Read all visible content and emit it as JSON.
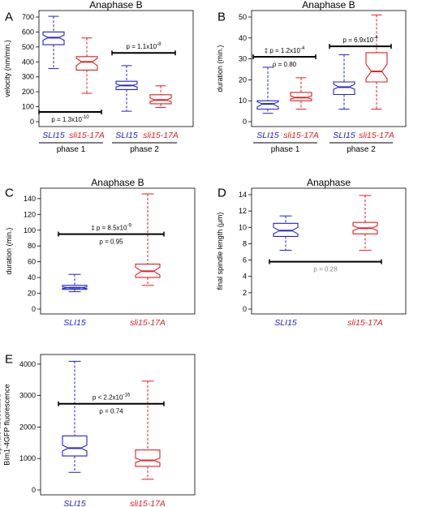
{
  "colors": {
    "blue": "#2222cc",
    "red": "#e02020",
    "black": "#000000",
    "gray": "#888888"
  },
  "chart_data": [
    {
      "panel": "A",
      "type": "box",
      "title": "Anaphase B",
      "ylabel": "velocity (nm/min.)",
      "ylim": [
        0,
        700
      ],
      "yticks": [
        0,
        100,
        200,
        300,
        400,
        500,
        600,
        700
      ],
      "groups": [
        {
          "label": "SLI15",
          "color": "blue",
          "whislo": 355,
          "q1": 515,
          "med": 562,
          "q3": 600,
          "whishi": 705,
          "notch_lo": 545,
          "notch_hi": 580
        },
        {
          "label": "sli15-17A",
          "color": "red",
          "whislo": 190,
          "q1": 345,
          "med": 400,
          "q3": 435,
          "whishi": 560,
          "notch_lo": 375,
          "notch_hi": 425
        },
        {
          "label": "SLI15",
          "color": "blue",
          "whislo": 70,
          "q1": 215,
          "med": 242,
          "q3": 270,
          "whishi": 375,
          "notch_lo": 232,
          "notch_hi": 252
        },
        {
          "label": "sli15-17A",
          "color": "red",
          "whislo": 95,
          "q1": 120,
          "med": 145,
          "q3": 180,
          "whishi": 240,
          "notch_lo": 135,
          "notch_hi": 158
        }
      ],
      "phases": [
        {
          "label": "phase 1",
          "groups": [
            0,
            1
          ]
        },
        {
          "label": "phase 2",
          "groups": [
            2,
            3
          ]
        }
      ],
      "annotations": [
        {
          "from": 0,
          "to": 1,
          "y": 65,
          "lines": [
            {
              "text": "p = 1.3x10",
              "sup": "-10"
            }
          ],
          "text_pos": "below"
        },
        {
          "from": 2,
          "to": 3,
          "y": 460,
          "lines": [
            {
              "text": "p = 1.1x10",
              "sup": "-8"
            }
          ],
          "text_pos": "above"
        }
      ]
    },
    {
      "panel": "B",
      "type": "box",
      "title": "Anaphase B",
      "ylabel": "duration (min.)",
      "ylim": [
        0,
        50
      ],
      "yticks": [
        0,
        10,
        20,
        30,
        40,
        50
      ],
      "groups": [
        {
          "label": "SLI15",
          "color": "blue",
          "whislo": 4,
          "q1": 6,
          "med": 8.5,
          "q3": 10,
          "whishi": 26,
          "notch_lo": 7,
          "notch_hi": 9.5
        },
        {
          "label": "sli15-17A",
          "color": "red",
          "whislo": 6,
          "q1": 10,
          "med": 11.5,
          "q3": 14,
          "whishi": 21,
          "notch_lo": 10.8,
          "notch_hi": 12.3
        },
        {
          "label": "SLI15",
          "color": "blue",
          "whislo": 6,
          "q1": 13,
          "med": 16.5,
          "q3": 19,
          "whishi": 32,
          "notch_lo": 15.5,
          "notch_hi": 18
        },
        {
          "label": "sli15-17A",
          "color": "red",
          "whislo": 6,
          "q1": 19,
          "med": 24,
          "q3": 33,
          "whishi": 51,
          "notch_lo": 20.5,
          "notch_hi": 27.5
        }
      ],
      "phases": [
        {
          "label": "phase 1",
          "groups": [
            0,
            1
          ]
        },
        {
          "label": "phase 2",
          "groups": [
            2,
            3
          ]
        }
      ],
      "annotations": [
        {
          "from": 0,
          "to": 1,
          "y": 31,
          "lines": [
            {
              "text": "‡ p = 1.2x10",
              "sup": "-4"
            },
            {
              "text": "ρ = 0.80"
            }
          ],
          "text_pos": "above_below"
        },
        {
          "from": 2,
          "to": 3,
          "y": 36,
          "lines": [
            {
              "text": "p = 6.9x10",
              "sup": "-4"
            }
          ],
          "text_pos": "above"
        }
      ]
    },
    {
      "panel": "C",
      "type": "box",
      "title": "Anaphase B",
      "ylabel": "duration (min.)",
      "ylim": [
        0,
        145
      ],
      "yticks": [
        0,
        20,
        40,
        60,
        80,
        100,
        120,
        140
      ],
      "groups": [
        {
          "label": "SLI15",
          "color": "blue",
          "whislo": 22,
          "q1": 25,
          "med": 27,
          "q3": 30,
          "whishi": 44,
          "notch_lo": 26,
          "notch_hi": 28
        },
        {
          "label": "sli15-17A",
          "color": "red",
          "whislo": 30,
          "q1": 40,
          "med": 48,
          "q3": 57,
          "whishi": 146,
          "notch_lo": 43,
          "notch_hi": 53
        }
      ],
      "annotations": [
        {
          "from": 0,
          "to": 1,
          "y": 95,
          "lines": [
            {
              "text": "‡ p = 8.5x10",
              "sup": "-9"
            },
            {
              "text": "ρ = 0.95"
            }
          ],
          "text_pos": "above_below"
        }
      ]
    },
    {
      "panel": "D",
      "type": "box",
      "title": "Anaphase",
      "ylabel": "final spindle length (μm)",
      "ylim": [
        0,
        14
      ],
      "yticks": [
        0,
        2,
        4,
        6,
        8,
        10,
        12,
        14
      ],
      "groups": [
        {
          "label": "SLI15",
          "color": "blue",
          "whislo": 7.2,
          "q1": 8.9,
          "med": 9.6,
          "q3": 10.5,
          "whishi": 11.4,
          "notch_lo": 9.2,
          "notch_hi": 10.0
        },
        {
          "label": "sli15-17A",
          "color": "red",
          "whislo": 7.2,
          "q1": 9.2,
          "med": 9.9,
          "q3": 10.6,
          "whishi": 13.9,
          "notch_lo": 9.6,
          "notch_hi": 10.2
        }
      ],
      "annotations": [
        {
          "from": 0,
          "to": 1,
          "y": 5.8,
          "lines": [
            {
              "text": "p = 0.28",
              "color": "gray"
            }
          ],
          "text_pos": "below"
        }
      ]
    },
    {
      "panel": "E",
      "type": "box",
      "title": "",
      "ylabel": [
        "Spindle-associated",
        "Bim1-4GFP fluorescence"
      ],
      "ylim": [
        0,
        4100
      ],
      "yticks": [
        0,
        1000,
        2000,
        3000,
        4000
      ],
      "groups": [
        {
          "label": "SLI15",
          "color": "blue",
          "whislo": 560,
          "q1": 1080,
          "med": 1330,
          "q3": 1720,
          "whishi": 4090,
          "notch_lo": 1240,
          "notch_hi": 1420
        },
        {
          "label": "sli15-17A",
          "color": "red",
          "whislo": 340,
          "q1": 750,
          "med": 940,
          "q3": 1270,
          "whishi": 3460,
          "notch_lo": 870,
          "notch_hi": 1010
        }
      ],
      "annotations": [
        {
          "from": 0,
          "to": 1,
          "y": 2740,
          "lines": [
            {
              "text": "p < 2.2x10",
              "sup": "-16"
            },
            {
              "text": "ρ = 0.74"
            }
          ],
          "text_pos": "above_below"
        }
      ]
    }
  ]
}
